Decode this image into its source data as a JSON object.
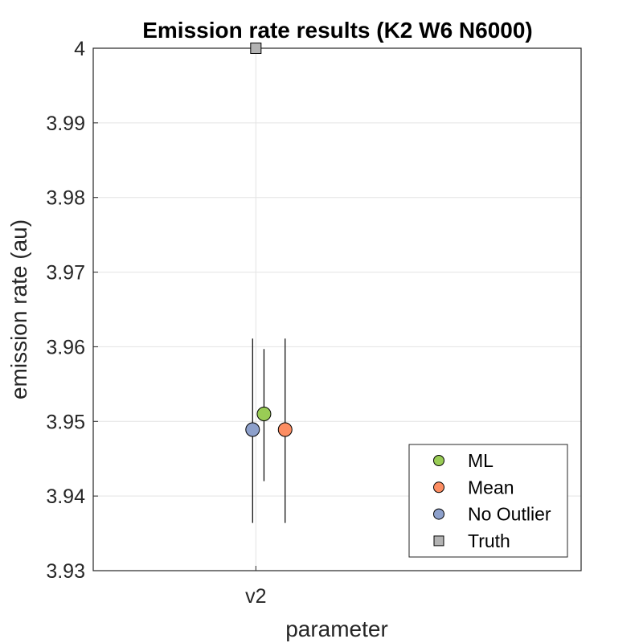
{
  "chart_data": {
    "type": "scatter",
    "title": "Emission rate results (K2 W6 N6000)",
    "xlabel": "parameter",
    "ylabel": "emission rate (au)",
    "categories": [
      "v2"
    ],
    "ylim": [
      3.93,
      4.0
    ],
    "yticks": [
      "3.93",
      "3.94",
      "3.95",
      "3.96",
      "3.97",
      "3.98",
      "3.99",
      "4"
    ],
    "grid": true,
    "legend_position": "bottom-right",
    "series": [
      {
        "name": "ML",
        "marker": "circle",
        "color": "#99cc55",
        "offset": 0.05,
        "value": 3.951,
        "err_low": 3.942,
        "err_high": 3.9597
      },
      {
        "name": "Mean",
        "marker": "circle",
        "color": "#fc8d62",
        "offset": 0.18,
        "value": 3.9489,
        "err_low": 3.9364,
        "err_high": 3.9611
      },
      {
        "name": "No Outlier",
        "marker": "circle",
        "color": "#8da0cb",
        "offset": -0.02,
        "value": 3.9489,
        "err_low": 3.9364,
        "err_high": 3.9611
      },
      {
        "name": "Truth",
        "marker": "square",
        "color": "#b3b3b3",
        "offset": 0.0,
        "value": 4.0
      }
    ]
  }
}
